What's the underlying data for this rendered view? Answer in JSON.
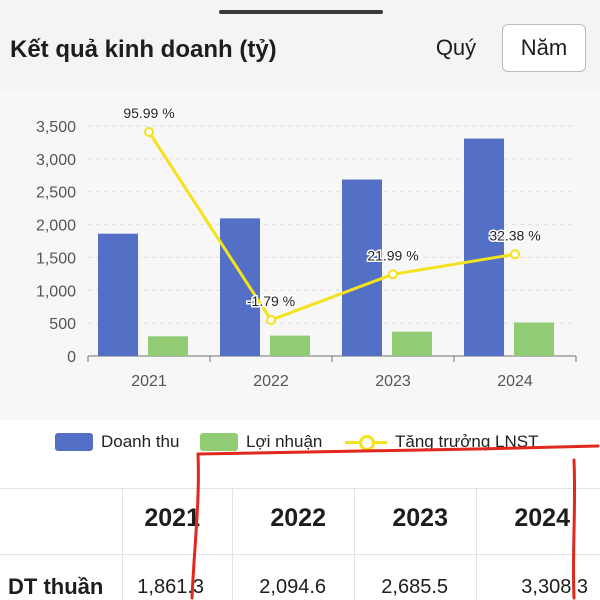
{
  "header": {
    "title": "Kết quả kinh doanh (tỷ)",
    "tabs": [
      {
        "label": "Quý",
        "selected": false
      },
      {
        "label": "Năm",
        "selected": true
      }
    ]
  },
  "chart_data": {
    "type": "bar",
    "categories": [
      "2021",
      "2022",
      "2023",
      "2024"
    ],
    "series": [
      {
        "name": "Doanh thu",
        "kind": "bar",
        "axis": "left",
        "color": "#5470c6",
        "values": [
          1861.3,
          2094.6,
          2685.5,
          3308.3
        ]
      },
      {
        "name": "Lợi nhuận",
        "kind": "bar",
        "axis": "left",
        "color": "#91cc75",
        "values": [
          300,
          310,
          370,
          510
        ]
      },
      {
        "name": "Tăng trưởng LNST",
        "kind": "line",
        "axis": "right",
        "color": "#f4e21c",
        "values": [
          95.99,
          -1.79,
          21.99,
          32.38
        ]
      }
    ],
    "data_labels": [
      "95.99 %",
      "-1.79 %",
      "21.99 %",
      "32.38 %"
    ],
    "ylim": [
      0,
      3500
    ],
    "yticks": [
      "0",
      "500",
      "1,000",
      "1,500",
      "2,000",
      "2,500",
      "3,000",
      "3,500"
    ],
    "xlabel": "",
    "ylabel": "",
    "grid": true,
    "legend": "bottom"
  },
  "legend": {
    "items": [
      "Doanh thu",
      "Lợi nhuận",
      "Tăng trưởng LNST"
    ]
  },
  "table": {
    "years": [
      "2021",
      "2022",
      "2023",
      "2024"
    ],
    "row_label": "DT thuần",
    "row_values": [
      "1,861.3",
      "2,094.6",
      "2,685.5",
      "3,308.3"
    ]
  },
  "colors": {
    "revenue": "#5470c6",
    "profit": "#91cc75",
    "growth": "#f4e21c",
    "annotation": "#e0281f"
  }
}
